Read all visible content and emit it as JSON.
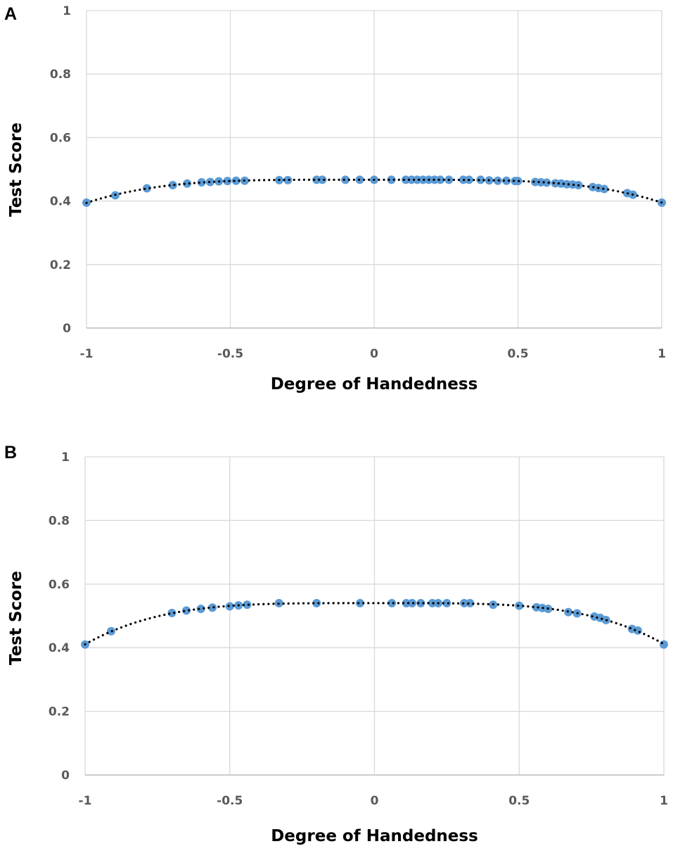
{
  "chart_data": [
    {
      "panel_label": "A",
      "type": "scatter",
      "xlabel": "Degree of Handedness",
      "ylabel": "Test Score",
      "xlim": [
        -1,
        1
      ],
      "ylim": [
        0,
        1
      ],
      "x_ticks": [
        "-1",
        "-0.5",
        "0",
        "0.5",
        "1"
      ],
      "y_ticks": [
        "0",
        "0.2",
        "0.4",
        "0.6",
        "0.8",
        "1"
      ],
      "grid": true,
      "trendline": "dotted polynomial",
      "point_color": "#5B9BD5",
      "trend_color": "#000000",
      "series": [
        {
          "points": [
            [
              -1.0,
              0.395
            ],
            [
              -0.9,
              0.418
            ],
            [
              -0.79,
              0.44
            ],
            [
              -0.7,
              0.45
            ],
            [
              -0.65,
              0.455
            ],
            [
              -0.6,
              0.459
            ],
            [
              -0.57,
              0.46
            ],
            [
              -0.54,
              0.462
            ],
            [
              -0.51,
              0.463
            ],
            [
              -0.48,
              0.464
            ],
            [
              -0.45,
              0.464
            ],
            [
              -0.33,
              0.466
            ],
            [
              -0.3,
              0.466
            ],
            [
              -0.2,
              0.467
            ],
            [
              -0.18,
              0.467
            ],
            [
              -0.1,
              0.467
            ],
            [
              -0.05,
              0.467
            ],
            [
              0.0,
              0.467
            ],
            [
              0.06,
              0.467
            ],
            [
              0.11,
              0.467
            ],
            [
              0.13,
              0.467
            ],
            [
              0.15,
              0.467
            ],
            [
              0.17,
              0.467
            ],
            [
              0.19,
              0.467
            ],
            [
              0.21,
              0.467
            ],
            [
              0.23,
              0.467
            ],
            [
              0.26,
              0.467
            ],
            [
              0.31,
              0.467
            ],
            [
              0.33,
              0.467
            ],
            [
              0.37,
              0.467
            ],
            [
              0.4,
              0.465
            ],
            [
              0.43,
              0.464
            ],
            [
              0.46,
              0.464
            ],
            [
              0.49,
              0.463
            ],
            [
              0.5,
              0.463
            ],
            [
              0.56,
              0.46
            ],
            [
              0.58,
              0.459
            ],
            [
              0.6,
              0.458
            ],
            [
              0.63,
              0.456
            ],
            [
              0.65,
              0.455
            ],
            [
              0.67,
              0.453
            ],
            [
              0.69,
              0.452
            ],
            [
              0.71,
              0.45
            ],
            [
              0.76,
              0.444
            ],
            [
              0.78,
              0.441
            ],
            [
              0.8,
              0.438
            ],
            [
              0.88,
              0.425
            ],
            [
              0.9,
              0.42
            ],
            [
              1.0,
              0.395
            ]
          ]
        }
      ]
    },
    {
      "panel_label": "B",
      "type": "scatter",
      "xlabel": "Degree of Handedness",
      "ylabel": "Test Score",
      "xlim": [
        -1,
        1
      ],
      "ylim": [
        0,
        1
      ],
      "x_ticks": [
        "-1",
        "-0.5",
        "0",
        "0.5",
        "1"
      ],
      "y_ticks": [
        "0",
        "0.2",
        "0.4",
        "0.6",
        "0.8",
        "1"
      ],
      "grid": true,
      "trendline": "dotted polynomial",
      "point_color": "#5B9BD5",
      "trend_color": "#000000",
      "series": [
        {
          "points": [
            [
              -1.0,
              0.41
            ],
            [
              -0.91,
              0.452
            ],
            [
              -0.7,
              0.509
            ],
            [
              -0.65,
              0.517
            ],
            [
              -0.6,
              0.522
            ],
            [
              -0.56,
              0.526
            ],
            [
              -0.5,
              0.53
            ],
            [
              -0.47,
              0.533
            ],
            [
              -0.44,
              0.535
            ],
            [
              -0.33,
              0.54
            ],
            [
              -0.2,
              0.54
            ],
            [
              -0.05,
              0.54
            ],
            [
              0.06,
              0.54
            ],
            [
              0.11,
              0.54
            ],
            [
              0.13,
              0.54
            ],
            [
              0.16,
              0.54
            ],
            [
              0.2,
              0.54
            ],
            [
              0.22,
              0.54
            ],
            [
              0.25,
              0.54
            ],
            [
              0.31,
              0.54
            ],
            [
              0.33,
              0.54
            ],
            [
              0.41,
              0.535
            ],
            [
              0.5,
              0.532
            ],
            [
              0.56,
              0.527
            ],
            [
              0.58,
              0.525
            ],
            [
              0.6,
              0.522
            ],
            [
              0.67,
              0.512
            ],
            [
              0.7,
              0.508
            ],
            [
              0.76,
              0.498
            ],
            [
              0.78,
              0.494
            ],
            [
              0.8,
              0.487
            ],
            [
              0.89,
              0.459
            ],
            [
              0.91,
              0.454
            ],
            [
              1.0,
              0.41
            ]
          ]
        }
      ]
    }
  ]
}
